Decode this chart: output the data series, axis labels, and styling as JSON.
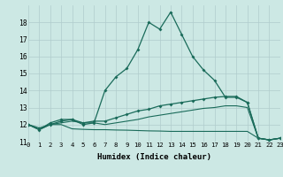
{
  "xlabel": "Humidex (Indice chaleur)",
  "bg_color": "#cce8e4",
  "grid_color": "#b0cccc",
  "line_color": "#1a6b5a",
  "xmin": 0,
  "xmax": 23,
  "ymin": 11,
  "ymax": 19,
  "x_ticks": [
    0,
    1,
    2,
    3,
    4,
    5,
    6,
    7,
    8,
    9,
    10,
    11,
    12,
    13,
    14,
    15,
    16,
    17,
    18,
    19,
    20,
    21,
    22,
    23
  ],
  "y_ticks": [
    11,
    12,
    13,
    14,
    15,
    16,
    17,
    18
  ],
  "line1_x": [
    0,
    1,
    2,
    3,
    4,
    5,
    6,
    7,
    8,
    9,
    10,
    11,
    12,
    13,
    14,
    15,
    16,
    17,
    18,
    19,
    20,
    21,
    22,
    23
  ],
  "line1_y": [
    12.0,
    11.7,
    12.1,
    12.3,
    12.3,
    12.0,
    12.1,
    14.0,
    14.8,
    15.3,
    16.4,
    18.0,
    17.6,
    18.6,
    17.3,
    16.0,
    15.2,
    14.6,
    13.6,
    13.6,
    13.3,
    11.2,
    11.1,
    11.2
  ],
  "line2_x": [
    0,
    1,
    2,
    3,
    4,
    5,
    6,
    7,
    8,
    9,
    10,
    11,
    12,
    13,
    14,
    15,
    16,
    17,
    18,
    19,
    20,
    21,
    22,
    23
  ],
  "line2_y": [
    12.0,
    11.8,
    12.0,
    12.2,
    12.3,
    12.1,
    12.2,
    12.2,
    12.4,
    12.6,
    12.8,
    12.9,
    13.1,
    13.2,
    13.3,
    13.4,
    13.5,
    13.6,
    13.65,
    13.65,
    13.3,
    11.2,
    11.1,
    11.2
  ],
  "line3_x": [
    0,
    1,
    2,
    3,
    4,
    5,
    6,
    7,
    8,
    9,
    10,
    11,
    12,
    13,
    14,
    15,
    16,
    17,
    18,
    19,
    20,
    21,
    22,
    23
  ],
  "line3_y": [
    12.0,
    11.7,
    12.0,
    12.1,
    12.2,
    12.1,
    12.1,
    12.0,
    12.1,
    12.2,
    12.3,
    12.45,
    12.55,
    12.65,
    12.75,
    12.85,
    12.95,
    13.0,
    13.1,
    13.1,
    13.0,
    11.2,
    11.1,
    11.2
  ],
  "line4_x": [
    0,
    1,
    2,
    3,
    4,
    5,
    6,
    7,
    8,
    9,
    10,
    11,
    12,
    13,
    14,
    15,
    16,
    17,
    18,
    19,
    20,
    21,
    22,
    23
  ],
  "line4_y": [
    12.0,
    11.7,
    12.0,
    12.0,
    11.75,
    11.72,
    11.7,
    11.7,
    11.68,
    11.67,
    11.65,
    11.63,
    11.62,
    11.6,
    11.6,
    11.6,
    11.6,
    11.6,
    11.6,
    11.6,
    11.6,
    11.2,
    11.1,
    11.2
  ]
}
